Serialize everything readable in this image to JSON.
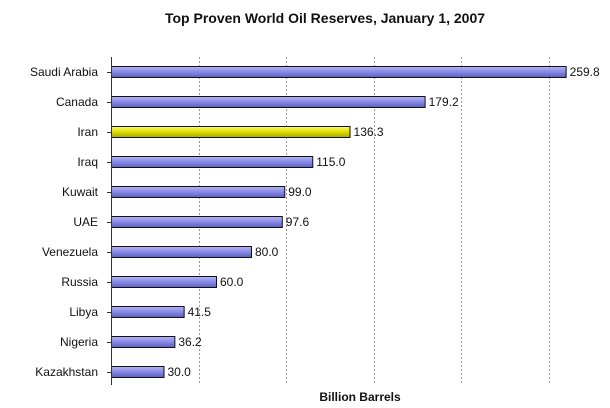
{
  "chart_data": {
    "type": "bar",
    "orientation": "horizontal",
    "title": "Top Proven World Oil Reserves, January 1, 2007",
    "xlabel": "Billion Barrels",
    "ylabel": "",
    "categories": [
      "Saudi Arabia",
      "Canada",
      "Iran",
      "Iraq",
      "Kuwait",
      "UAE",
      "Venezuela",
      "Russia",
      "Libya",
      "Nigeria",
      "Kazakhstan"
    ],
    "values": [
      259.8,
      179.2,
      136.3,
      115.0,
      99.0,
      97.6,
      80.0,
      60.0,
      41.5,
      36.2,
      30.0
    ],
    "value_labels": [
      "259.8",
      "179.2",
      "136.3",
      "115.0",
      "99.0",
      "97.6",
      "80.0",
      "60.0",
      "41.5",
      "36.2",
      "30.0"
    ],
    "highlight_category": "Iran",
    "xlim": [
      0,
      275
    ],
    "grid": "vertical dotted",
    "colors": {
      "bar": "#8b8de6",
      "bar_highlight": "#e3e100",
      "bar_outline": "#111111",
      "grid": "#999999",
      "axis": "#333333"
    }
  }
}
